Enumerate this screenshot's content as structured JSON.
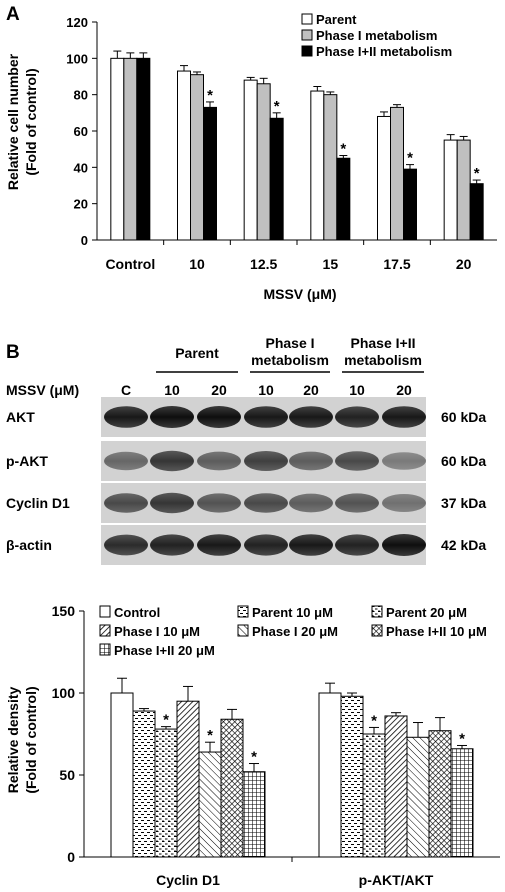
{
  "panel_a": {
    "label": "A",
    "chart_data": {
      "type": "bar",
      "title": "",
      "xlabel": "MSSV (μM)",
      "ylabel_lines": [
        "Relative cell number",
        "(Fold of control)"
      ],
      "ylim": [
        0,
        120
      ],
      "yticks": [
        0,
        20,
        40,
        60,
        80,
        100,
        120
      ],
      "categories": [
        "Control",
        "10",
        "12.5",
        "15",
        "17.5",
        "20"
      ],
      "series": [
        {
          "name": "Parent",
          "fill": "#ffffff",
          "values": [
            100,
            93,
            88,
            82,
            68,
            55
          ],
          "errors": [
            4,
            3,
            1.5,
            2.5,
            2.5,
            3
          ],
          "sig": [
            false,
            false,
            false,
            false,
            false,
            false
          ]
        },
        {
          "name": "Phase I metabolism",
          "fill": "#c0c0c0",
          "values": [
            100,
            91,
            86,
            80,
            73,
            55
          ],
          "errors": [
            3,
            1.5,
            3,
            1.5,
            1.5,
            2
          ],
          "sig": [
            false,
            false,
            false,
            false,
            false,
            false
          ]
        },
        {
          "name": "Phase I+II metabolism",
          "fill": "#000000",
          "values": [
            100,
            73,
            67,
            45,
            39,
            31
          ],
          "errors": [
            3,
            3,
            3,
            1.5,
            2.5,
            2
          ],
          "sig": [
            false,
            true,
            true,
            true,
            true,
            true
          ]
        }
      ],
      "legend": "top-right",
      "sig_symbol": "*"
    }
  },
  "panel_b": {
    "label": "B",
    "blot": {
      "groups": [
        {
          "label_lines": [
            "Parent"
          ]
        },
        {
          "label_lines": [
            "Phase I",
            "metabolism"
          ]
        },
        {
          "label_lines": [
            "Phase I+II",
            "metabolism"
          ]
        }
      ],
      "lane_title": "MSSV (μM)",
      "lanes": [
        "C",
        "10",
        "20",
        "10",
        "20",
        "10",
        "20"
      ],
      "rows": [
        {
          "name": "AKT",
          "kda": "60 kDa"
        },
        {
          "name": "p-AKT",
          "kda": "60 kDa"
        },
        {
          "name": "Cyclin D1",
          "kda": "37 kDa"
        },
        {
          "name": "β-actin",
          "kda": "42 kDa"
        }
      ]
    },
    "chart_data": {
      "type": "bar",
      "title": "",
      "xlabel": "",
      "ylabel_lines": [
        "Relative density",
        "(Fold of control)"
      ],
      "ylim": [
        0,
        150
      ],
      "yticks": [
        0,
        50,
        100,
        150
      ],
      "categories": [
        "Cyclin D1",
        "p-AKT/AKT"
      ],
      "series": [
        {
          "name": "Control",
          "pattern": "none",
          "values": [
            100,
            100
          ],
          "errors": [
            9,
            6
          ],
          "sig": [
            false,
            false
          ]
        },
        {
          "name": "Parent 10 μM",
          "pattern": "dash",
          "values": [
            89,
            98
          ],
          "errors": [
            1.5,
            2
          ],
          "sig": [
            false,
            false
          ]
        },
        {
          "name": "Parent 20 μM",
          "pattern": "dash2",
          "values": [
            78,
            75
          ],
          "errors": [
            1.5,
            4
          ],
          "sig": [
            true,
            true
          ]
        },
        {
          "name": "Phase I 10 μM",
          "pattern": "diag-dense",
          "values": [
            95,
            86
          ],
          "errors": [
            9,
            2
          ],
          "sig": [
            false,
            false
          ]
        },
        {
          "name": "Phase I 20 μM",
          "pattern": "diag",
          "values": [
            64,
            73
          ],
          "errors": [
            6,
            9
          ],
          "sig": [
            true,
            false
          ]
        },
        {
          "name": "Phase I+II 10 μM",
          "pattern": "cross",
          "values": [
            84,
            77
          ],
          "errors": [
            6,
            8
          ],
          "sig": [
            false,
            false
          ]
        },
        {
          "name": "Phase I+II 20 μM",
          "pattern": "grid",
          "values": [
            52,
            66
          ],
          "errors": [
            5,
            2
          ],
          "sig": [
            true,
            true
          ]
        }
      ],
      "legend": "top",
      "sig_symbol": "*"
    }
  }
}
